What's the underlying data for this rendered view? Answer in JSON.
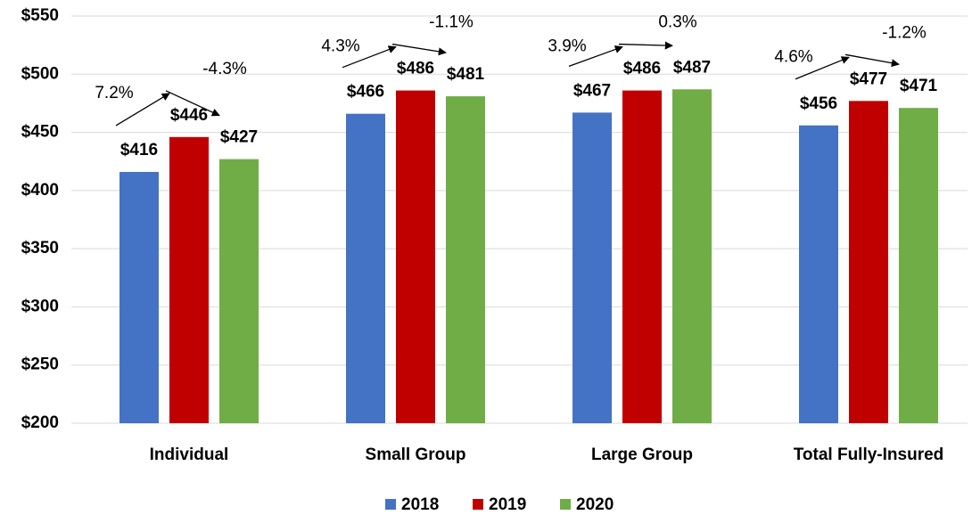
{
  "chart_data": {
    "type": "bar",
    "categories": [
      "Individual",
      "Small Group",
      "Large Group",
      "Total Fully-Insured"
    ],
    "series": [
      {
        "name": "2018",
        "color": "#4472c4",
        "values": [
          416,
          466,
          467,
          456
        ],
        "value_labels": [
          "$416",
          "$466",
          "$467",
          "$456"
        ]
      },
      {
        "name": "2019",
        "color": "#c00000",
        "values": [
          446,
          486,
          486,
          477
        ],
        "value_labels": [
          "$446",
          "$486",
          "$486",
          "$477"
        ]
      },
      {
        "name": "2020",
        "color": "#70ad47",
        "values": [
          427,
          481,
          487,
          471
        ],
        "value_labels": [
          "$427",
          "$481",
          "$487",
          "$471"
        ]
      }
    ],
    "annotations": [
      [
        "7.2%",
        "-4.3%"
      ],
      [
        "4.3%",
        "-1.1%"
      ],
      [
        "3.9%",
        "0.3%"
      ],
      [
        "4.6%",
        "-1.2%"
      ]
    ],
    "ylim": [
      200,
      550
    ],
    "yticks": [
      {
        "value": 200,
        "label": "$200"
      },
      {
        "value": 250,
        "label": "$250"
      },
      {
        "value": 300,
        "label": "$300"
      },
      {
        "value": 350,
        "label": "$350"
      },
      {
        "value": 400,
        "label": "$400"
      },
      {
        "value": 450,
        "label": "$450"
      },
      {
        "value": 500,
        "label": "$500"
      },
      {
        "value": 550,
        "label": "$550"
      }
    ],
    "grid": true,
    "legend": "bottom"
  }
}
